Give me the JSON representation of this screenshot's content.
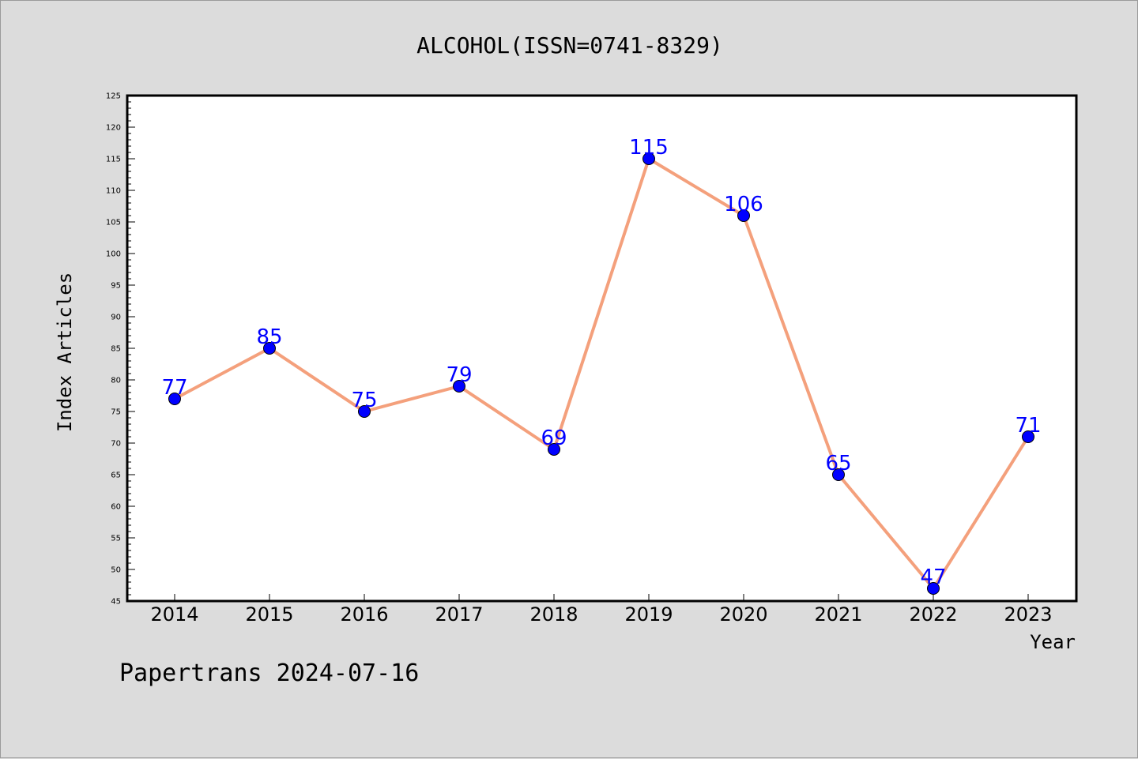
{
  "chart_data": {
    "type": "line",
    "title": "ALCOHOL(ISSN=0741-8329)",
    "xlabel": "Year",
    "ylabel": "Index Articles",
    "categories": [
      "2014",
      "2015",
      "2016",
      "2017",
      "2018",
      "2019",
      "2020",
      "2021",
      "2022",
      "2023"
    ],
    "series": [
      {
        "values": [
          77,
          85,
          75,
          79,
          69,
          115,
          106,
          65,
          47,
          71
        ]
      }
    ],
    "ylim": [
      45,
      125
    ],
    "ytick_step": 5,
    "grid": false,
    "data_labels": true,
    "colors": {
      "line": "#f4a07c",
      "marker": "#0000ff",
      "label": "#0000ff",
      "background": "#dcdcdc",
      "plot_bg": "#ffffff"
    }
  },
  "footer": "Papertrans 2024-07-16"
}
